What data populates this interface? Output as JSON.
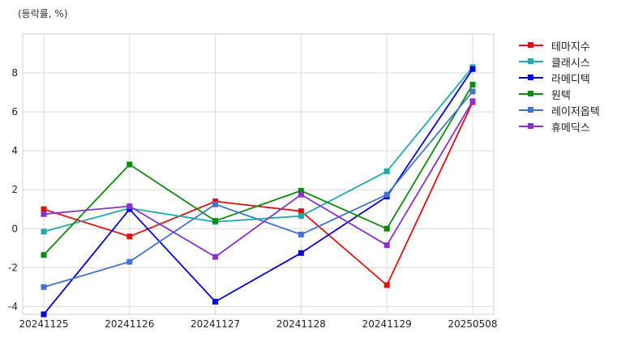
{
  "chart_data": {
    "type": "line",
    "ylabel": "(등락률, %)",
    "categories": [
      "20241125",
      "20241126",
      "20241127",
      "20241128",
      "20241129",
      "20250508"
    ],
    "ylim": [
      -4.4,
      10
    ],
    "yticks": [
      -4,
      -2,
      0,
      2,
      4,
      6,
      8
    ],
    "grid": true,
    "legend_position": "outside-right",
    "series": [
      {
        "name": "테마지수",
        "color": "#dd1111",
        "values": [
          1.0,
          -0.4,
          1.4,
          0.9,
          -2.9,
          6.5
        ]
      },
      {
        "name": "클래시스",
        "color": "#20aaaa",
        "values": [
          -0.15,
          1.05,
          0.35,
          0.65,
          2.95,
          8.3
        ]
      },
      {
        "name": "라메디텍",
        "color": "#0000dd",
        "values": [
          -4.4,
          1.0,
          -3.75,
          -1.25,
          1.65,
          8.2
        ]
      },
      {
        "name": "원텍",
        "color": "#118811",
        "values": [
          -1.35,
          3.3,
          0.4,
          1.95,
          0.0,
          7.4
        ]
      },
      {
        "name": "레이저옵텍",
        "color": "#4472cc",
        "values": [
          -3.0,
          -1.7,
          1.25,
          -0.3,
          1.75,
          7.05
        ]
      },
      {
        "name": "휴메딕스",
        "color": "#8833cc",
        "values": [
          0.75,
          1.15,
          -1.45,
          1.75,
          -0.85,
          6.55
        ]
      }
    ]
  }
}
